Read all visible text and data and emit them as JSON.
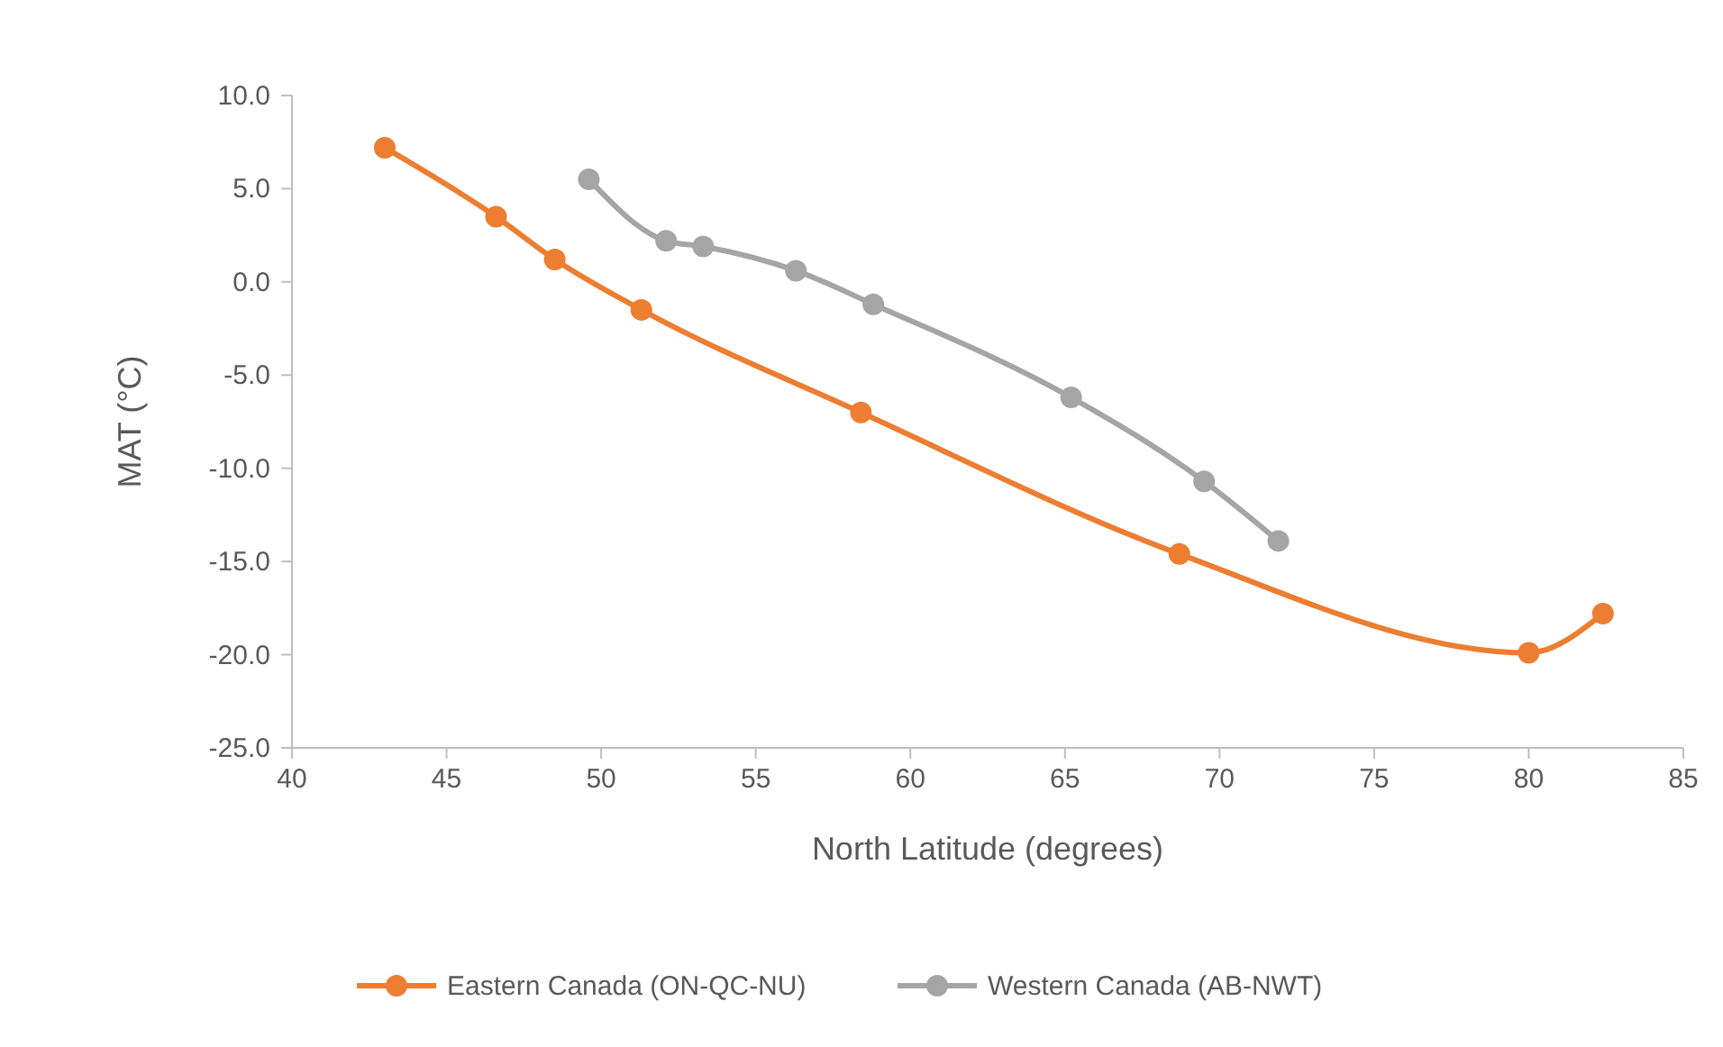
{
  "chart_data": {
    "type": "line",
    "xlabel": "North Latitude (degrees)",
    "ylabel": "MAT (°C)",
    "xlim": [
      40,
      85
    ],
    "xticks": [
      40,
      45,
      50,
      55,
      60,
      65,
      70,
      75,
      80,
      85
    ],
    "ylim": [
      -25,
      10
    ],
    "yticks": [
      {
        "value": 10,
        "label": "10.0"
      },
      {
        "value": 5,
        "label": "5.0"
      },
      {
        "value": 0,
        "label": "0.0"
      },
      {
        "value": -5,
        "label": "-5.0"
      },
      {
        "value": -10,
        "label": "-10.0"
      },
      {
        "value": -15,
        "label": "-15.0"
      },
      {
        "value": -20,
        "label": "-20.0"
      },
      {
        "value": -25,
        "label": "-25.0"
      }
    ],
    "marker": "circle",
    "legend": "bottom",
    "series": [
      {
        "name": "Eastern Canada (ON-QC-NU)",
        "color": "#ed7d31",
        "x": [
          43.0,
          46.6,
          48.5,
          51.3,
          58.4,
          68.7,
          80.0,
          82.4
        ],
        "values": [
          7.2,
          3.5,
          1.2,
          -1.5,
          -7.0,
          -14.6,
          -19.9,
          -17.8
        ]
      },
      {
        "name": "Western Canada (AB-NWT)",
        "color": "#a5a5a5",
        "x": [
          49.6,
          52.1,
          53.3,
          56.3,
          58.8,
          65.2,
          69.5,
          71.9
        ],
        "values": [
          5.5,
          2.2,
          1.9,
          0.6,
          -1.2,
          -6.2,
          -10.7,
          -13.9
        ]
      }
    ]
  }
}
